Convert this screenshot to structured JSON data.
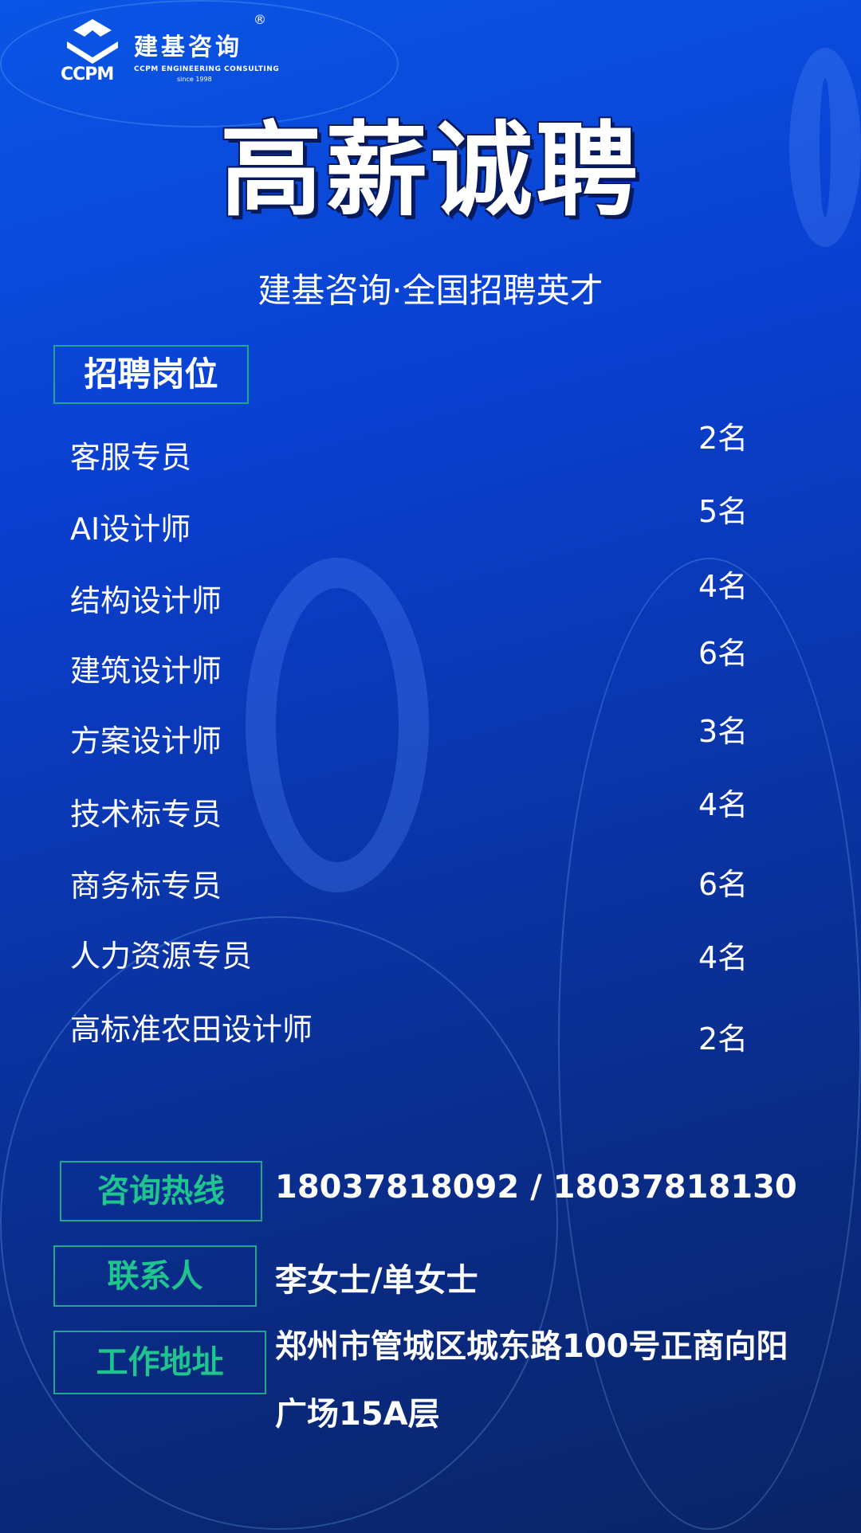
{
  "logo": {
    "cn": "建基咨询",
    "en": "CCPM ENGINEERING CONSULTING",
    "since": "since 1998",
    "mark": "CCPM",
    "reg": "®"
  },
  "title": "高薪诚聘",
  "subtitle": "建基咨询·全国招聘英才",
  "section_label": "招聘岗位",
  "jobs": [
    {
      "name": "客服专员",
      "count": "2名"
    },
    {
      "name": "AI设计师",
      "count": "5名"
    },
    {
      "name": "结构设计师",
      "count": "4名"
    },
    {
      "name": "建筑设计师",
      "count": "6名"
    },
    {
      "name": "方案设计师",
      "count": "3名"
    },
    {
      "name": "技术标专员",
      "count": "4名"
    },
    {
      "name": "商务标专员",
      "count": "6名"
    },
    {
      "name": "人力资源专员",
      "count": "4名"
    },
    {
      "name": "高标准农田设计师",
      "count": "2名"
    }
  ],
  "contact": {
    "hotline_label": "咨询热线",
    "hotline": "18037818092 / 18037818130",
    "person_label": "联系人",
    "person": "李女士/单女士",
    "address_label": "工作地址",
    "address_line1": "郑州市管城区城东路100号正商向阳",
    "address_line2": "广场15A层"
  },
  "colors": {
    "accent": "#1fc48f",
    "background": "#0a3fcf"
  }
}
